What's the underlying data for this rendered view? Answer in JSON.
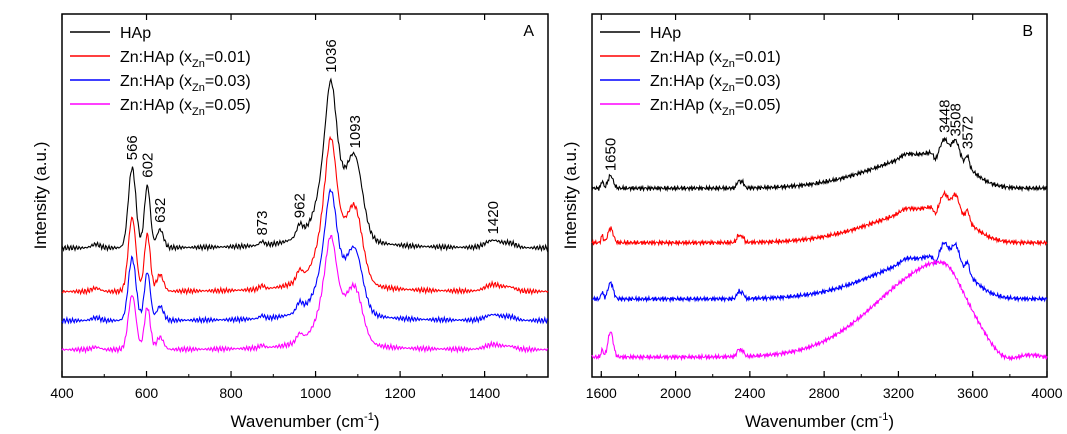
{
  "chart_data": [
    {
      "type": "line",
      "panel_label": "A",
      "xlabel": "Wavenumber (cm-1)",
      "xlabel_main": "Wavenumber (cm",
      "xlabel_sup": "-1",
      "xlabel_close": ")",
      "ylabel": "Intensity (a.u.)",
      "xlim": [
        400,
        1550
      ],
      "xticks": [
        "400",
        "600",
        "800",
        "1000",
        "1200",
        "1400"
      ],
      "ylim": [
        0,
        1
      ],
      "grid": false,
      "legend_position": "top-left",
      "series_order": [
        "HAp",
        "Zn:HAp (xZn=0.01)",
        "Zn:HAp (xZn=0.03)",
        "Zn:HAp (xZn=0.05)"
      ],
      "colors": [
        "#000000",
        "#ff0000",
        "#0000ff",
        "#ff00ff"
      ],
      "baselines": [
        0.355,
        0.235,
        0.155,
        0.075
      ],
      "peaks": [
        {
          "pos": 566,
          "label": "566"
        },
        {
          "pos": 602,
          "label": "602"
        },
        {
          "pos": 632,
          "label": "632"
        },
        {
          "pos": 873,
          "label": "873"
        },
        {
          "pos": 962,
          "label": "962"
        },
        {
          "pos": 1036,
          "label": "1036"
        },
        {
          "pos": 1093,
          "label": "1093"
        },
        {
          "pos": 1420,
          "label": "1420"
        }
      ],
      "peak_heights": {
        "566": 0.22,
        "602": 0.17,
        "632": 0.05,
        "873": 0.01,
        "962": 0.03,
        "1036": 0.46,
        "1093": 0.22,
        "1420": 0.02
      }
    },
    {
      "type": "line",
      "panel_label": "B",
      "xlabel": "Wavenumber (cm-1)",
      "xlabel_main": "Wavenumber (cm",
      "xlabel_sup": "-1",
      "xlabel_close": ")",
      "ylabel": "Intensity (a.u.)",
      "xlim": [
        1550,
        4000
      ],
      "xticks": [
        "1600",
        "2000",
        "2400",
        "2800",
        "3200",
        "3600",
        "4000"
      ],
      "ylim": [
        0,
        1
      ],
      "grid": false,
      "legend_position": "top-left",
      "series_order": [
        "HAp",
        "Zn:HAp (xZn=0.01)",
        "Zn:HAp (xZn=0.03)",
        "Zn:HAp (xZn=0.05)"
      ],
      "colors": [
        "#000000",
        "#ff0000",
        "#0000ff",
        "#ff00ff"
      ],
      "baselines": [
        0.52,
        0.37,
        0.215,
        0.055
      ],
      "peaks": [
        {
          "pos": 1650,
          "label": "1650"
        },
        {
          "pos": 3448,
          "label": "3448"
        },
        {
          "pos": 3508,
          "label": "3508"
        },
        {
          "pos": 3572,
          "label": "3572"
        }
      ],
      "broad_band": {
        "center": 3440,
        "height_HAp": 0.12,
        "height_ZnHAp_0.05": 0.28
      }
    }
  ],
  "legend": [
    {
      "prefix": "HAp",
      "sub": "",
      "suffix": ""
    },
    {
      "prefix": "Zn:HAp (x",
      "sub": "Zn",
      "suffix": "=0.01)"
    },
    {
      "prefix": "Zn:HAp (x",
      "sub": "Zn",
      "suffix": "=0.03)"
    },
    {
      "prefix": "Zn:HAp (x",
      "sub": "Zn",
      "suffix": "=0.05)"
    }
  ]
}
